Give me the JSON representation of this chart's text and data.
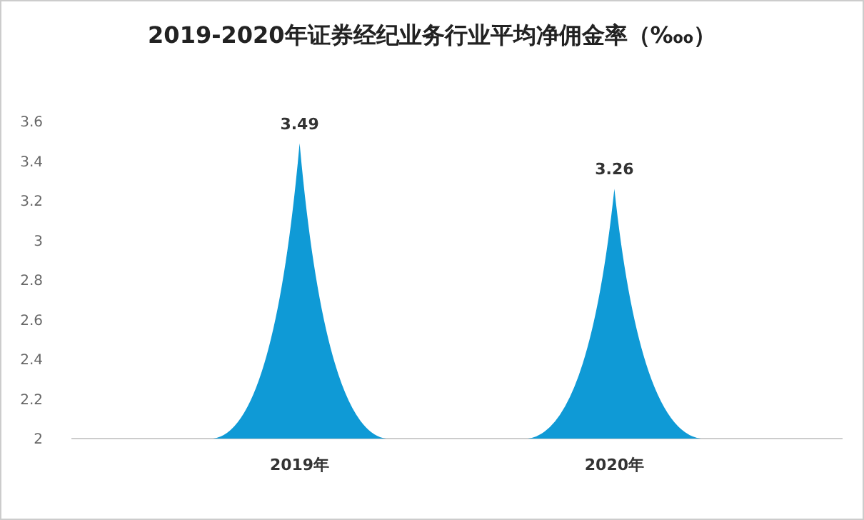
{
  "chart_data": {
    "type": "bar",
    "title": "2019-2020年证券经纪业务行业平均净佣金率（‱）",
    "categories": [
      "2019年",
      "2020年"
    ],
    "values": [
      3.49,
      3.26
    ],
    "color": "#0f9ad6",
    "ylim": [
      2,
      3.6
    ],
    "yticks": [
      2,
      2.2,
      2.4,
      2.6,
      2.8,
      3,
      3.2,
      3.4,
      3.6
    ],
    "data_labels": true,
    "grid": false
  }
}
